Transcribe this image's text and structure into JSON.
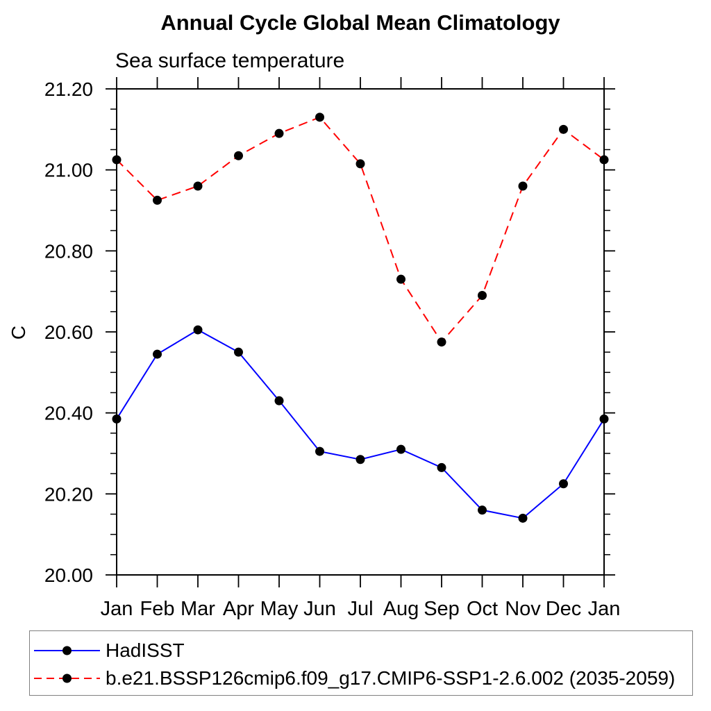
{
  "chart_data": {
    "type": "line",
    "title": "Annual Cycle Global Mean Climatology",
    "subtitle": "Sea surface temperature",
    "ylabel": "C",
    "xlabel": "",
    "categories": [
      "Jan",
      "Feb",
      "Mar",
      "Apr",
      "May",
      "Jun",
      "Jul",
      "Aug",
      "Sep",
      "Oct",
      "Nov",
      "Dec",
      "Jan"
    ],
    "series": [
      {
        "name": "HadISST",
        "color": "#0000ff",
        "line_style": "solid",
        "marker": "circle",
        "marker_color": "#000000",
        "values": [
          20.385,
          20.545,
          20.605,
          20.55,
          20.43,
          20.305,
          20.285,
          20.31,
          20.265,
          20.16,
          20.14,
          20.225,
          20.385
        ]
      },
      {
        "name": "b.e21.BSSP126cmip6.f09_g17.CMIP6-SSP1-2.6.002 (2035-2059)",
        "color": "#ff0000",
        "line_style": "dashed",
        "marker": "circle",
        "marker_color": "#000000",
        "values": [
          21.025,
          20.925,
          20.96,
          21.035,
          21.09,
          21.13,
          21.015,
          20.73,
          20.575,
          20.69,
          20.96,
          21.1,
          21.025
        ]
      }
    ],
    "ylim": [
      20.0,
      21.2
    ],
    "ytick_labels": [
      "21.20",
      "21.00",
      "20.80",
      "20.60",
      "20.40",
      "20.20",
      "20.00"
    ],
    "ytick_values": [
      21.2,
      21.0,
      20.8,
      20.6,
      20.4,
      20.2,
      20.0
    ],
    "ytick_minor_step": 0.05,
    "grid": false,
    "legend_position": "bottom-left-box"
  },
  "legend": {
    "entries": [
      {
        "label": "HadISST",
        "color": "#0000ff",
        "line_style": "solid"
      },
      {
        "label": "b.e21.BSSP126cmip6.f09_g17.CMIP6-SSP1-2.6.002 (2035-2059)",
        "color": "#ff0000",
        "line_style": "dashed"
      }
    ]
  },
  "colors": {
    "frame": "#000000",
    "tick": "#000000",
    "text": "#000000",
    "legend_border": "#808080",
    "background": "#ffffff"
  }
}
